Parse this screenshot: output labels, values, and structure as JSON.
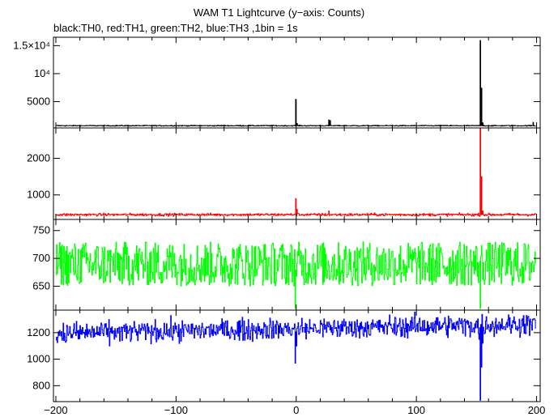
{
  "chart_data": {
    "type": "line",
    "title": "WAM T1 Lightcurve (y−axis: Counts)",
    "subtitle": "black:TH0, red:TH1, green:TH2, blue:TH3 ,1bin = 1s",
    "xlim": [
      -202,
      203
    ],
    "x_ticks": [
      -200,
      -100,
      0,
      100,
      200
    ],
    "x_tick_labels": [
      "−200",
      "−100",
      "0",
      "100",
      "200"
    ],
    "panels": [
      {
        "series_name": "TH0",
        "color": "#000000",
        "ylim": [
          300,
          16500
        ],
        "y_ticks": [
          5000,
          10000,
          15000
        ],
        "y_tick_labels": [
          "5000",
          "10⁴",
          "1.5×10⁴"
        ],
        "baseline": 700,
        "noise": 40,
        "noise_type": "gaussian",
        "features": [
          {
            "x": -0.5,
            "value": 5400
          },
          {
            "x": 0.5,
            "value": 1100
          },
          {
            "x": 27,
            "value": 1700
          },
          {
            "x": 28,
            "value": 1600
          },
          {
            "x": 153,
            "value": 15900
          },
          {
            "x": 154,
            "value": 7400
          },
          {
            "x": 155,
            "value": 1200
          },
          {
            "x": 197,
            "value": 1300
          }
        ]
      },
      {
        "series_name": "TH1",
        "color": "#ff0000",
        "ylim": [
          330,
          2830
        ],
        "y_ticks": [
          1000,
          2000
        ],
        "y_tick_labels": [
          "1000",
          "2000"
        ],
        "baseline": 460,
        "noise": 18,
        "noise_type": "gaussian",
        "features": [
          {
            "x": -0.5,
            "value": 900
          },
          {
            "x": 0.5,
            "value": 600
          },
          {
            "x": 27,
            "value": 560
          },
          {
            "x": 153,
            "value": 2830
          },
          {
            "x": 154,
            "value": 1500
          },
          {
            "x": 155,
            "value": 560
          }
        ]
      },
      {
        "series_name": "TH2",
        "color": "#00ff00",
        "ylim": [
          607,
          770
        ],
        "y_ticks": [
          650,
          700,
          750
        ],
        "y_tick_labels": [
          "650",
          "700",
          "750"
        ],
        "baseline": 690,
        "noise": 40,
        "noise_type": "uniform",
        "features": [
          {
            "x": -1,
            "value": 610
          },
          {
            "x": 153,
            "value": 610
          }
        ]
      },
      {
        "series_name": "TH3",
        "color": "#0000ff",
        "ylim": [
          680,
          1370
        ],
        "y_ticks": [
          800,
          1000,
          1200
        ],
        "y_tick_labels": [
          "800",
          "1000",
          "1200"
        ],
        "baseline": 1230,
        "noise": 40,
        "noise_type": "gaussian",
        "trend": 70,
        "features": [
          {
            "x": -1,
            "value": 970
          },
          {
            "x": 0,
            "value": 1100
          },
          {
            "x": 152,
            "value": 1150
          },
          {
            "x": 153,
            "value": 690
          },
          {
            "x": 154,
            "value": 940
          },
          {
            "x": 155,
            "value": 1120
          }
        ]
      }
    ]
  }
}
